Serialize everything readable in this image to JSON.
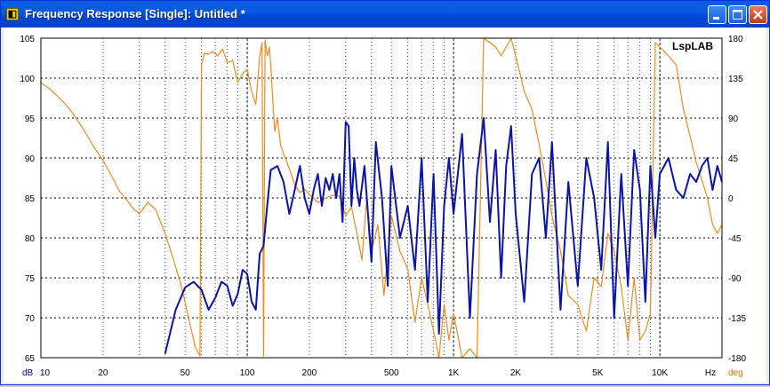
{
  "window": {
    "title": "Frequency Response [Single]: Untitled *",
    "app_icon": "lsplab-app-icon",
    "buttons": [
      {
        "name": "minimize-button",
        "icon": "minimize-icon"
      },
      {
        "name": "maximize-button",
        "icon": "maximize-icon"
      },
      {
        "name": "close-button",
        "icon": "close-icon"
      }
    ]
  },
  "chart_data": {
    "type": "line",
    "brand": "LspLAB",
    "x_scale": "log",
    "xlim": [
      10,
      20000
    ],
    "x_ticks": [
      10,
      20,
      50,
      100,
      200,
      500,
      1000,
      2000,
      5000,
      10000
    ],
    "x_tick_labels": [
      "10",
      "20",
      "50",
      "100",
      "200",
      "500",
      "1K",
      "2K",
      "5K",
      "10K"
    ],
    "x_unit": "Hz",
    "y_left_unit": "dB",
    "y_right_unit": "deg",
    "ylim_left": [
      65,
      105
    ],
    "ylim_right": [
      -180,
      180
    ],
    "y_left_ticks": [
      "105",
      "100",
      "95",
      "90",
      "85",
      "80",
      "75",
      "70",
      "65"
    ],
    "y_right_ticks": [
      "180",
      "135",
      "90",
      "45",
      "0",
      "-45",
      "-90",
      "-135",
      "-180"
    ],
    "grid": true,
    "colors": {
      "magnitude": "#0a14a8",
      "phase": "#f08a1e",
      "grid": "#000000",
      "left_axis_label": "#0000c0",
      "right_axis_label": "#e07000"
    },
    "series": [
      {
        "id": "magnitude",
        "axis": "left",
        "x": [
          40,
          45,
          50,
          55,
          60,
          65,
          70,
          75,
          80,
          85,
          90,
          95,
          100,
          105,
          110,
          115,
          120,
          125,
          130,
          140,
          150,
          160,
          170,
          180,
          190,
          200,
          210,
          220,
          230,
          240,
          250,
          260,
          270,
          280,
          290,
          300,
          310,
          320,
          330,
          340,
          350,
          370,
          400,
          420,
          450,
          480,
          500,
          550,
          600,
          650,
          700,
          750,
          800,
          850,
          900,
          950,
          1000,
          1100,
          1200,
          1300,
          1400,
          1500,
          1600,
          1700,
          1800,
          1900,
          2000,
          2200,
          2400,
          2600,
          2800,
          3000,
          3300,
          3600,
          4000,
          4400,
          4800,
          5200,
          5600,
          6000,
          6500,
          7000,
          7500,
          8000,
          8500,
          9000,
          9500,
          10000,
          11000,
          12000,
          13000,
          14000,
          15000,
          16000,
          17000,
          18000,
          19000,
          20000
        ],
        "values": [
          65.5,
          71,
          73.8,
          74.5,
          73.5,
          71,
          72.5,
          74.5,
          74,
          71.5,
          73,
          76,
          75.5,
          72,
          71,
          78,
          79,
          84,
          88.5,
          89,
          87,
          83,
          86,
          89,
          85,
          83,
          86,
          88,
          84,
          87.5,
          86,
          88,
          85,
          88,
          82,
          94.5,
          94,
          84,
          90,
          86,
          84,
          89,
          77,
          92,
          85,
          74,
          89,
          80,
          84,
          76,
          90,
          72,
          88,
          68,
          84,
          90,
          83,
          93,
          70,
          88,
          95,
          82,
          91,
          75,
          89,
          94,
          83,
          72,
          88,
          90,
          80,
          92,
          71,
          87,
          74,
          90,
          85,
          76,
          92,
          70,
          88,
          74,
          91,
          86,
          72,
          89,
          80,
          88,
          90,
          86,
          85,
          88,
          87,
          89,
          90,
          86,
          89,
          87
        ]
      },
      {
        "id": "phase",
        "axis": "right",
        "x": [
          10,
          11,
          12,
          13,
          14,
          15,
          16,
          17,
          18,
          19,
          20,
          22,
          24,
          26,
          28,
          30,
          33,
          36,
          40,
          44,
          48,
          52,
          56,
          59,
          60,
          62,
          65,
          68,
          72,
          76,
          80,
          85,
          90,
          95,
          100,
          105,
          110,
          115,
          118,
          120,
          122,
          125,
          128,
          130,
          133,
          136,
          140,
          145,
          150,
          160,
          170,
          180,
          190,
          200,
          220,
          240,
          260,
          280,
          300,
          320,
          340,
          360,
          380,
          400,
          430,
          460,
          500,
          550,
          600,
          650,
          700,
          750,
          800,
          850,
          900,
          950,
          1000,
          1100,
          1200,
          1300,
          1400,
          1500,
          1600,
          1700,
          1800,
          1900,
          2000,
          2200,
          2400,
          2600,
          2800,
          3000,
          3300,
          3600,
          4000,
          4400,
          4800,
          5200,
          5600,
          6000,
          6500,
          7000,
          7500,
          8000,
          8500,
          9000,
          9500,
          10000,
          11000,
          12000,
          13000,
          14000,
          15000,
          16000,
          17000,
          18000,
          19000,
          20000
        ],
        "values": [
          130,
          123,
          115,
          107,
          98,
          88,
          78,
          68,
          58,
          50,
          42,
          25,
          8,
          -2,
          -12,
          -18,
          -5,
          -13,
          -40,
          -70,
          -100,
          -135,
          -168,
          -178,
          150,
          163,
          162,
          165,
          160,
          168,
          152,
          155,
          130,
          140,
          145,
          120,
          105,
          160,
          175,
          -178,
          178,
          160,
          170,
          150,
          110,
          75,
          90,
          60,
          50,
          33,
          15,
          6,
          10,
          4,
          -5,
          0,
          3,
          2,
          -20,
          -10,
          -40,
          -70,
          2,
          -60,
          -30,
          -110,
          -20,
          -60,
          -80,
          -140,
          -90,
          -120,
          -150,
          -180,
          -120,
          -160,
          -130,
          -180,
          -170,
          -180,
          180,
          175,
          170,
          160,
          170,
          180,
          160,
          120,
          100,
          60,
          20,
          -20,
          -60,
          -110,
          -120,
          -150,
          -90,
          -100,
          -40,
          -60,
          -100,
          -160,
          -90,
          -160,
          -150,
          -130,
          175,
          170,
          160,
          150,
          100,
          70,
          40,
          20,
          0,
          -30,
          -40,
          -30
        ]
      }
    ]
  }
}
